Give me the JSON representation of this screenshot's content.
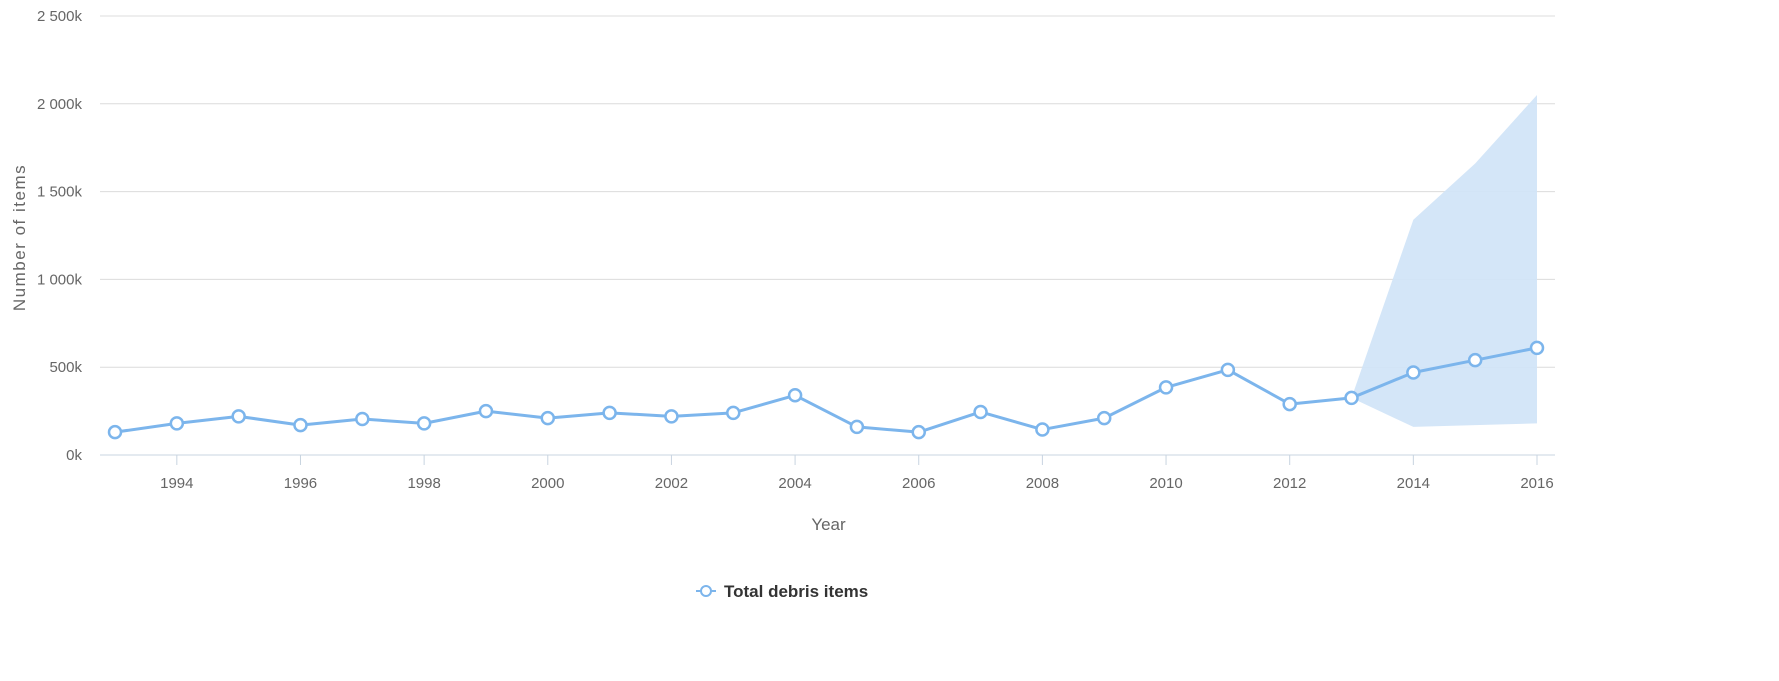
{
  "chart_data": {
    "type": "line",
    "xlabel": "Year",
    "ylabel": "Number of items",
    "x": [
      1993,
      1994,
      1995,
      1996,
      1997,
      1998,
      1999,
      2000,
      2001,
      2002,
      2003,
      2004,
      2005,
      2006,
      2007,
      2008,
      2009,
      2010,
      2011,
      2012,
      2013,
      2014,
      2015,
      2016
    ],
    "xlim": [
      1993,
      2016
    ],
    "x_ticks": [
      1994,
      1996,
      1998,
      2000,
      2002,
      2004,
      2006,
      2008,
      2010,
      2012,
      2014,
      2016
    ],
    "ylim": [
      0,
      2500000
    ],
    "y_ticks": [
      0,
      500000,
      1000000,
      1500000,
      2000000,
      2500000
    ],
    "y_tick_labels": [
      "0k",
      "500k",
      "1 000k",
      "1 500k",
      "2 000k",
      "2 500k"
    ],
    "grid": true,
    "legend_position": "bottom-center",
    "series": [
      {
        "name": "Total debris items",
        "color": "#7cb5ec",
        "marker": "hollow-circle",
        "values": [
          130000,
          180000,
          220000,
          170000,
          205000,
          180000,
          250000,
          210000,
          240000,
          220000,
          240000,
          340000,
          160000,
          130000,
          245000,
          145000,
          210000,
          385000,
          485000,
          290000,
          325000,
          470000,
          540000,
          610000
        ]
      }
    ],
    "range_band": {
      "color": "#cfe3f7",
      "x": [
        2013,
        2014,
        2015,
        2016
      ],
      "low": [
        325000,
        160000,
        170000,
        180000
      ],
      "high": [
        325000,
        1340000,
        1660000,
        2050000
      ]
    }
  }
}
